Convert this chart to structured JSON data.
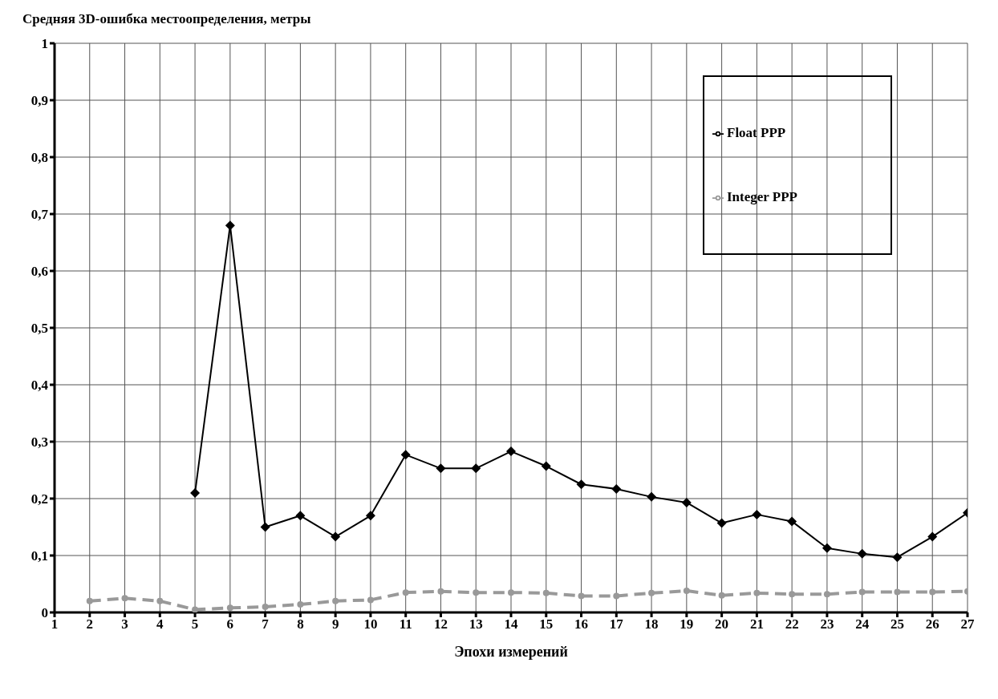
{
  "chart_data": {
    "type": "line",
    "title": "Средняя 3D-ошибка местоопределения, метры",
    "xlabel": "Эпохи измерений",
    "x": [
      2,
      3,
      4,
      5,
      6,
      7,
      8,
      9,
      10,
      11,
      12,
      13,
      14,
      15,
      16,
      17,
      18,
      19,
      20,
      21,
      22,
      23,
      24,
      25,
      26,
      27
    ],
    "series": [
      {
        "name": "Float PPP",
        "color": "#000000",
        "marker": "diamond",
        "line_style": "solid",
        "values": [
          null,
          null,
          null,
          0.21,
          0.68,
          0.15,
          0.17,
          0.133,
          0.17,
          0.277,
          0.253,
          0.253,
          0.283,
          0.257,
          0.225,
          0.217,
          0.203,
          0.193,
          0.157,
          0.172,
          0.16,
          0.113,
          0.103,
          0.097,
          0.133,
          0.175
        ]
      },
      {
        "name": "Integer PPP",
        "color": "#999999",
        "marker": "circle",
        "line_style": "dashed",
        "values": [
          0.02,
          0.025,
          0.02,
          0.005,
          0.008,
          0.01,
          0.014,
          0.02,
          0.022,
          0.035,
          0.037,
          0.035,
          0.035,
          0.034,
          0.029,
          0.029,
          0.034,
          0.038,
          0.03,
          0.034,
          0.032,
          0.032,
          0.036,
          0.036,
          0.036,
          0.037
        ]
      }
    ],
    "xlim": [
      1,
      27
    ],
    "xticks": [
      1,
      2,
      3,
      4,
      5,
      6,
      7,
      8,
      9,
      10,
      11,
      12,
      13,
      14,
      15,
      16,
      17,
      18,
      19,
      20,
      21,
      22,
      23,
      24,
      25,
      26,
      27
    ],
    "ylim": [
      0,
      1
    ],
    "yticks": [
      0,
      {
        "value": 0.1,
        "label": "0,1"
      },
      {
        "value": 0.2,
        "label": "0,2"
      },
      {
        "value": 0.3,
        "label": "0,3"
      },
      {
        "value": 0.4,
        "label": "0,4"
      },
      {
        "value": 0.5,
        "label": "0,5"
      },
      {
        "value": 0.6,
        "label": "0,6"
      },
      {
        "value": 0.7,
        "label": "0,7"
      },
      {
        "value": 0.8,
        "label": "0,8"
      },
      {
        "value": 0.9,
        "label": "0,9"
      },
      1
    ],
    "grid": true,
    "legend": "top right"
  }
}
